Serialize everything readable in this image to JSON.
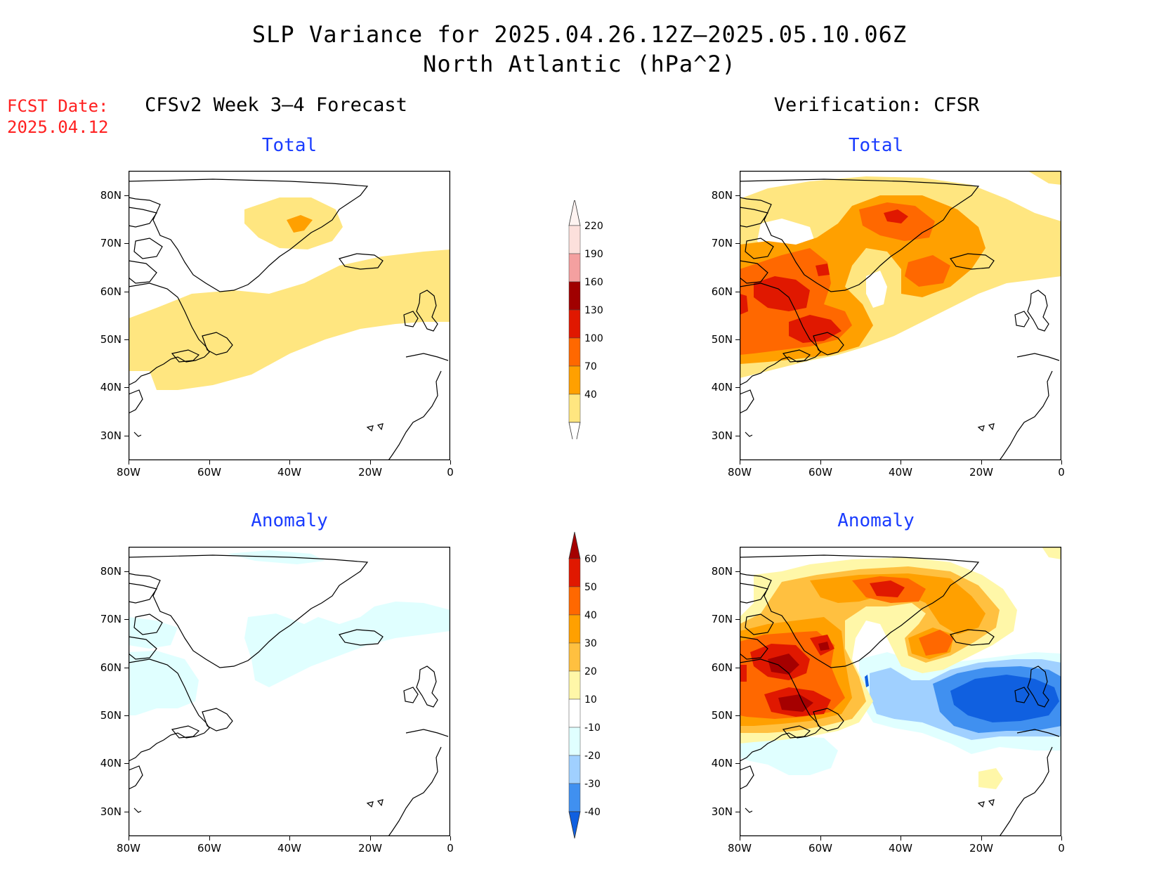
{
  "header": {
    "title_line1": "SLP Variance for 2025.04.26.12Z—2025.05.10.06Z",
    "title_line2": "North Atlantic (hPa^2)",
    "fcst_label": "FCST Date:",
    "fcst_date": "2025.04.12"
  },
  "columns": {
    "left_title": "CFSv2 Week 3—4 Forecast",
    "right_title": "Verification: CFSR"
  },
  "panels": {
    "top_left_subtitle": "Total",
    "top_right_subtitle": "Total",
    "bottom_left_subtitle": "Anomaly",
    "bottom_right_subtitle": "Anomaly"
  },
  "axes": {
    "lat_labels": [
      "80N",
      "70N",
      "60N",
      "50N",
      "40N",
      "30N"
    ],
    "lon_labels": [
      "80W",
      "60W",
      "40W",
      "20W",
      "0"
    ]
  },
  "colorbar_total": {
    "levels": [
      "220",
      "190",
      "160",
      "130",
      "100",
      "70",
      "40"
    ],
    "colors": [
      "#fce0dc",
      "#f4a0a0",
      "#a00000",
      "#e01800",
      "#ff6800",
      "#ffa000",
      "#ffe680"
    ]
  },
  "colorbar_anomaly": {
    "levels": [
      "60",
      "50",
      "40",
      "30",
      "20",
      "10",
      "-10",
      "-20",
      "-30",
      "-40"
    ],
    "colors": [
      "#a50000",
      "#e01800",
      "#ff6800",
      "#ffa000",
      "#ffc040",
      "#fff7a8",
      "#ffffff",
      "#e0ffff",
      "#a0d0ff",
      "#4090f0",
      "#1060e0"
    ]
  },
  "palette": {
    "c40": "#ffe680",
    "c70": "#ffa000",
    "c100": "#ff6800",
    "c130": "#e01800",
    "c160": "#a00000",
    "a10": "#fff7a8",
    "a20": "#ffc040",
    "a30": "#ffa000",
    "a40": "#ff6800",
    "a50": "#e01800",
    "a60": "#a50000",
    "n10": "#e0ffff",
    "n20": "#a0d0ff",
    "n30": "#4090f0",
    "n40": "#1060e0"
  }
}
